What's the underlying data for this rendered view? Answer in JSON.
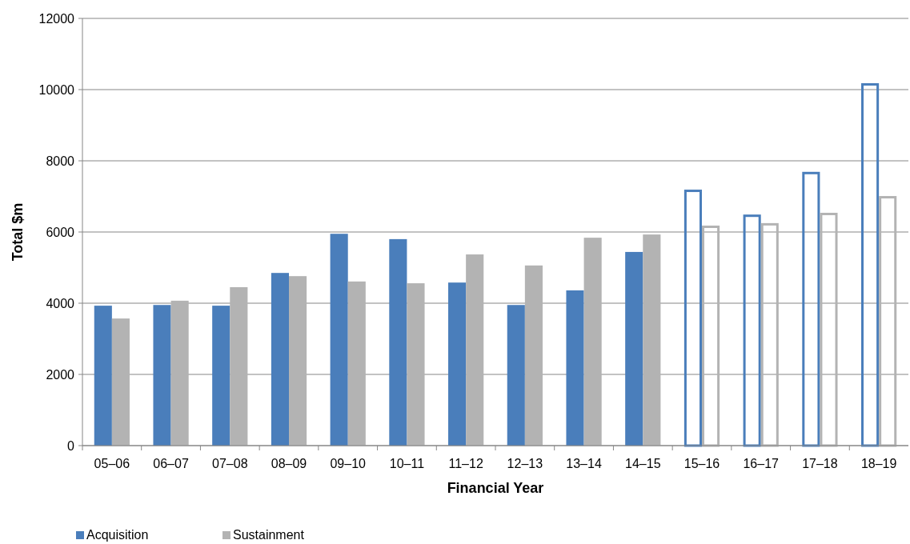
{
  "chart_data": {
    "type": "bar",
    "xlabel": "Financial Year",
    "ylabel": "Total $m",
    "categories": [
      "05–06",
      "06–07",
      "07–08",
      "08–09",
      "09–10",
      "10–11",
      "11–12",
      "12–13",
      "13–14",
      "14–15",
      "15–16",
      "16–17",
      "17–18",
      "18–19"
    ],
    "series": [
      {
        "name": "Acquisition",
        "color": "#4a7ebb",
        "values": [
          3930,
          3950,
          3930,
          4850,
          5950,
          5800,
          4580,
          3950,
          4360,
          5440,
          null,
          null,
          null,
          null
        ]
      },
      {
        "name": "Sustainment",
        "color": "#b3b3b3",
        "values": [
          3570,
          4070,
          4450,
          4760,
          4610,
          4560,
          5370,
          5060,
          5840,
          5930,
          null,
          null,
          null,
          null
        ]
      },
      {
        "color": "#4a7ebb",
        "values": [
          null,
          null,
          null,
          null,
          null,
          null,
          null,
          null,
          null,
          null,
          7190,
          6490,
          7690,
          10180
        ]
      },
      {
        "color": "#b3b3b3",
        "values": [
          null,
          null,
          null,
          null,
          null,
          null,
          null,
          null,
          null,
          null,
          6180,
          6250,
          6540,
          7010
        ]
      }
    ],
    "ylim": [
      0,
      12000
    ],
    "yticks": [
      0,
      2000,
      4000,
      6000,
      8000,
      10000,
      12000
    ],
    "grid": "y",
    "legend": "bottom left"
  }
}
